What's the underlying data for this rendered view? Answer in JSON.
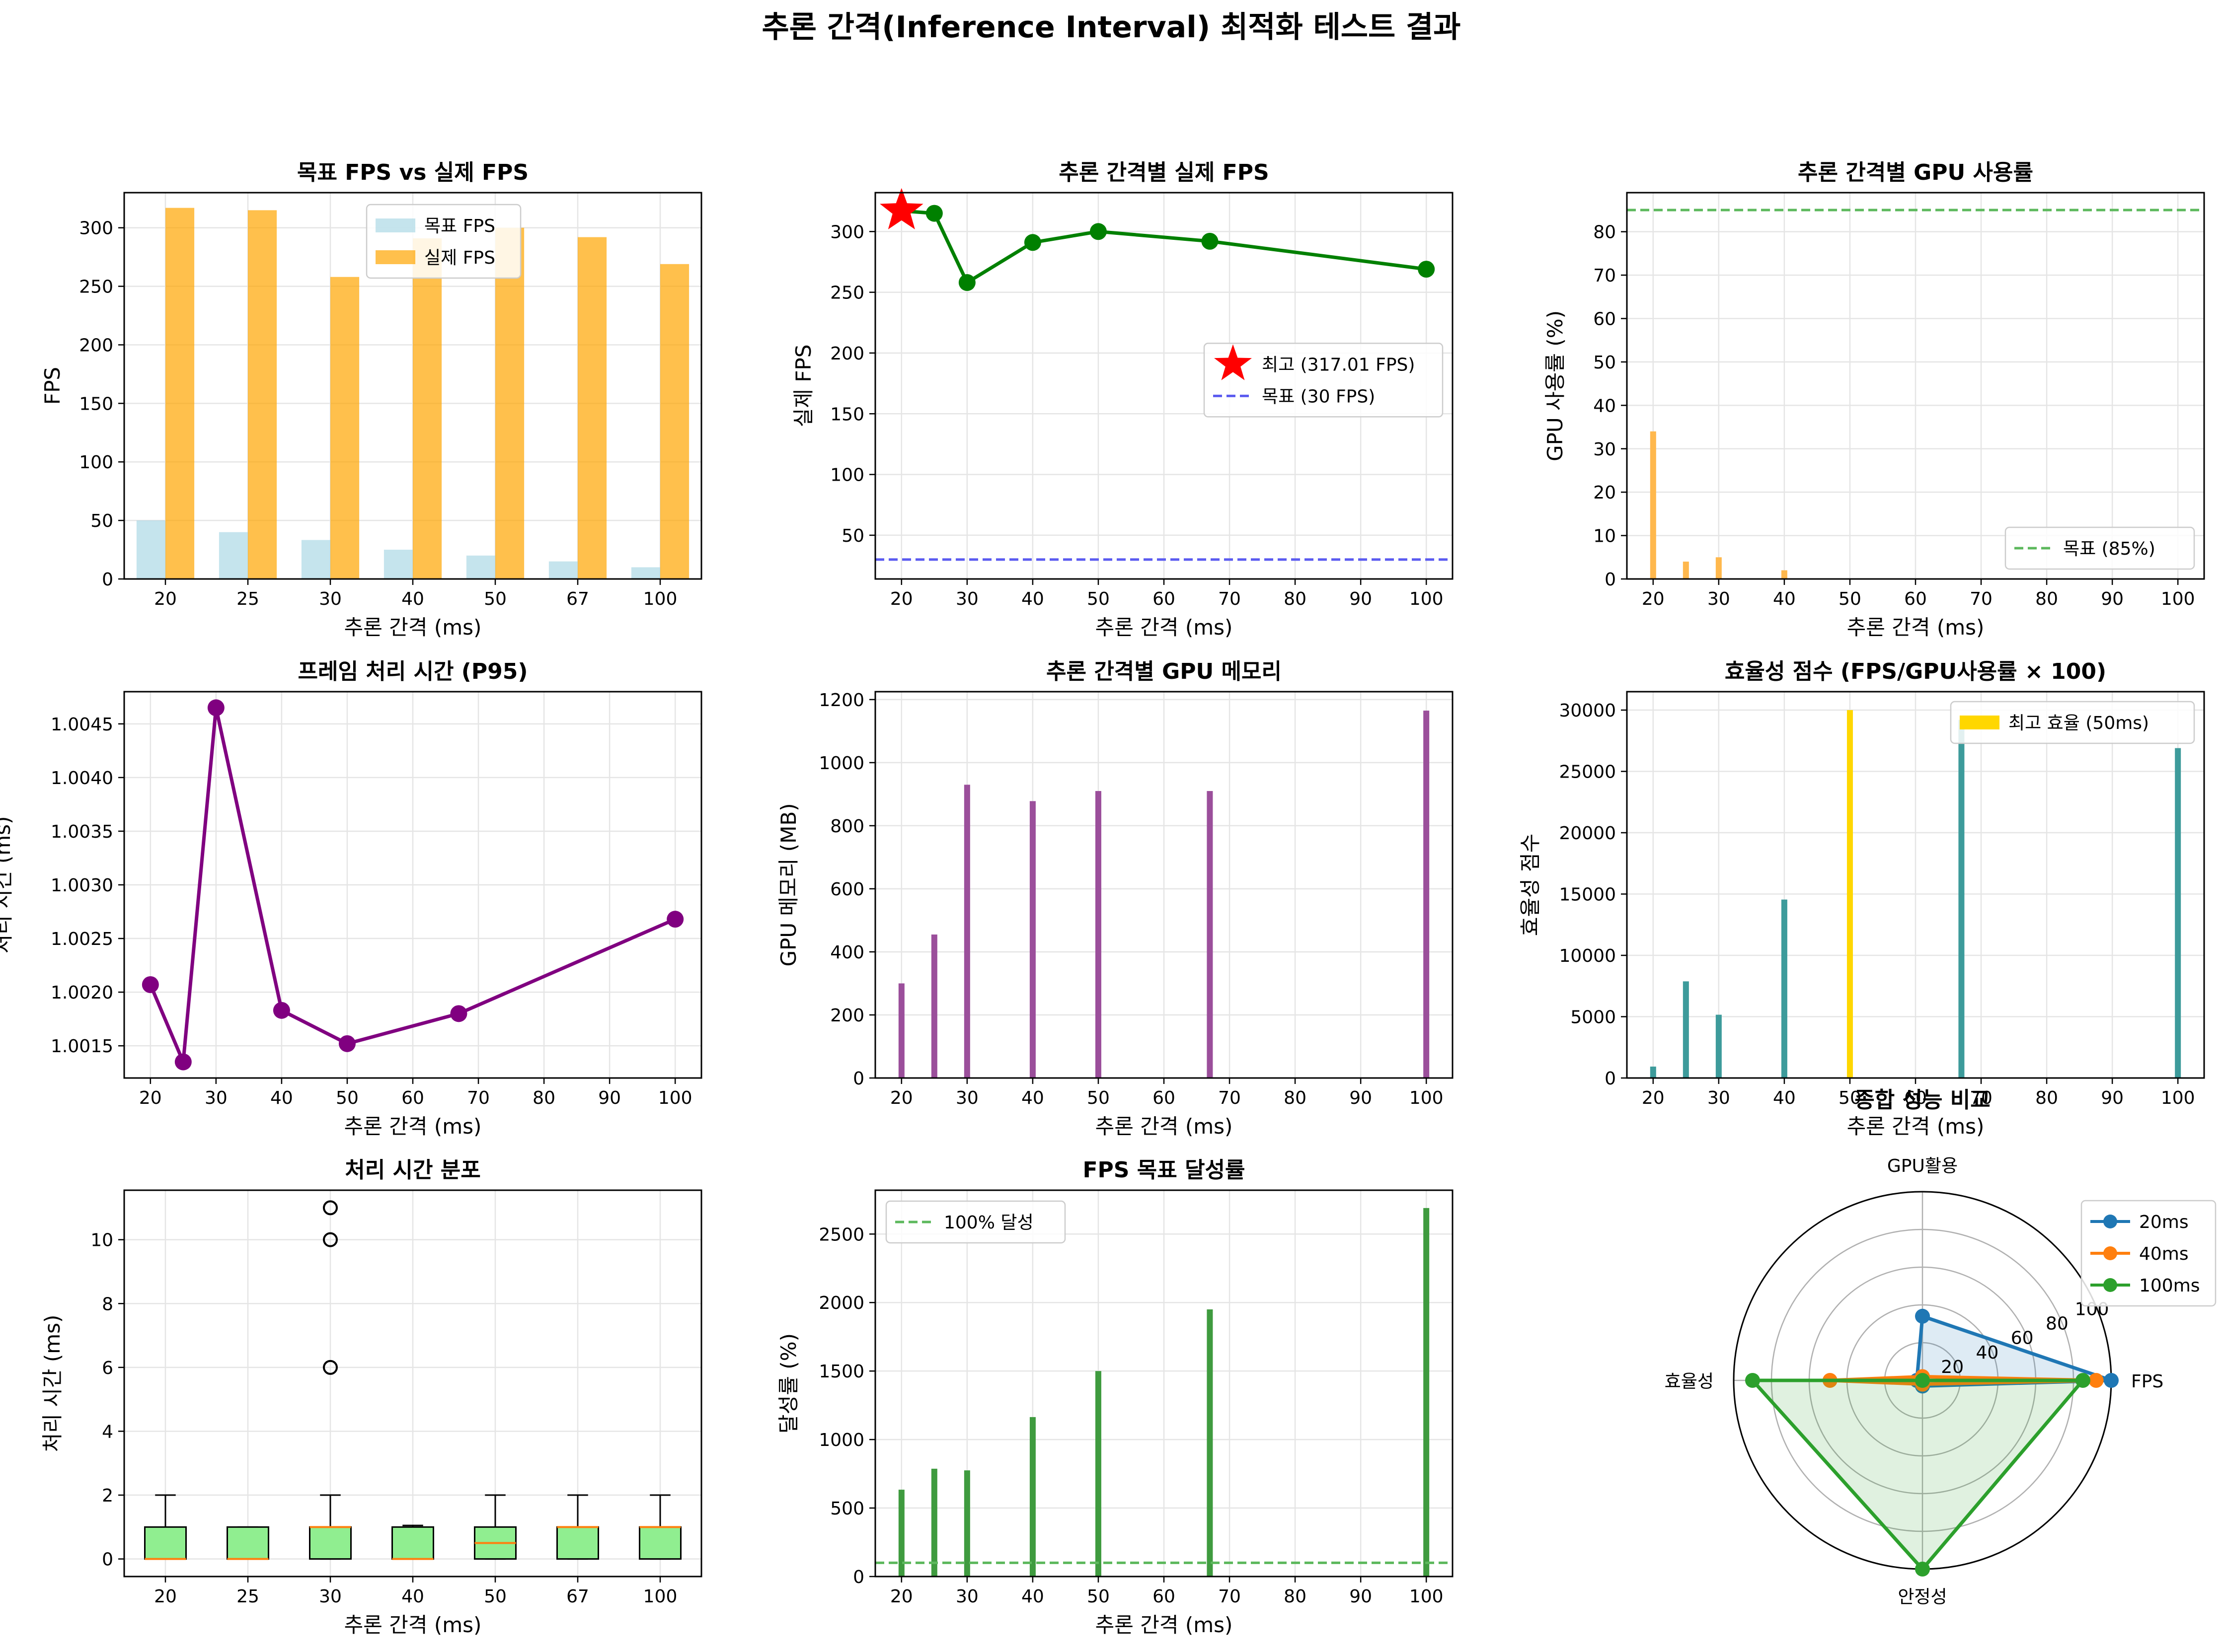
{
  "figure": {
    "title": "추론 간격(Inference Interval) 최적화 테스트 결과"
  },
  "palette": {
    "target_bar": "#add8e6",
    "actual_bar": "#ffa500",
    "green_line": "#008000",
    "star": "#ff0000",
    "blue_dash": "#5b5bf0",
    "orange_bar": "#ffb84d",
    "green_dash": "#5cb85c",
    "purple": "#800080",
    "purple_bar": "#9b4f9b",
    "teal": "#3d9b9b",
    "gold": "#ffd700",
    "box_fill": "#90ee90",
    "median": "#ff7f0e",
    "bar_green": "#3f9b3f",
    "radar_blue": "#1f77b4",
    "radar_orange": "#ff7f0e",
    "radar_green": "#2ca02c",
    "grid": "#e5e5e5"
  },
  "chart_data": [
    {
      "id": "p1",
      "type": "bar",
      "title": "목표 FPS vs 실제 FPS",
      "xlabel": "추론 간격 (ms)",
      "ylabel": "FPS",
      "categories": [
        "20",
        "25",
        "30",
        "40",
        "50",
        "67",
        "100"
      ],
      "series": [
        {
          "name": "목표 FPS",
          "values": [
            50,
            40,
            33.3,
            25,
            20,
            15,
            10
          ]
        },
        {
          "name": "실제 FPS",
          "values": [
            317.01,
            315,
            258,
            291,
            300,
            292,
            269
          ]
        }
      ],
      "ylim": [
        0,
        330
      ],
      "yticks": [
        0,
        50,
        100,
        150,
        200,
        250,
        300
      ],
      "legend": "top-center"
    },
    {
      "id": "p2",
      "type": "line",
      "title": "추론 간격별 실제 FPS",
      "xlabel": "추론 간격 (ms)",
      "ylabel": "실제 FPS",
      "x": [
        20,
        25,
        30,
        40,
        50,
        67,
        100
      ],
      "y": [
        317.01,
        315,
        258,
        291,
        300,
        292,
        269
      ],
      "best": {
        "x": 20,
        "y": 317.01,
        "label": "최고 (317.01 FPS)"
      },
      "target": {
        "y": 30,
        "label": "목표 (30 FPS)"
      },
      "xlim": [
        16,
        104
      ],
      "ylim": [
        14,
        332
      ],
      "xticks": [
        20,
        30,
        40,
        50,
        60,
        70,
        80,
        90,
        100
      ],
      "yticks": [
        50,
        100,
        150,
        200,
        250,
        300
      ],
      "legend": "center-right"
    },
    {
      "id": "p3",
      "type": "bar",
      "title": "추론 간격별 GPU 사용률",
      "xlabel": "추론 간격 (ms)",
      "ylabel": "GPU 사용률 (%)",
      "x": [
        20,
        25,
        30,
        40,
        50,
        67,
        100
      ],
      "values": [
        34,
        4,
        5,
        2,
        0,
        0,
        0
      ],
      "target": {
        "y": 85,
        "label": "목표 (85%)"
      },
      "xlim": [
        16,
        104
      ],
      "ylim": [
        0,
        89
      ],
      "xticks": [
        20,
        30,
        40,
        50,
        60,
        70,
        80,
        90,
        100
      ],
      "yticks": [
        0,
        10,
        20,
        30,
        40,
        50,
        60,
        70,
        80
      ],
      "legend": "bottom-right"
    },
    {
      "id": "p4",
      "type": "line",
      "title": "프레임 처리 시간 (P95)",
      "xlabel": "추론 간격 (ms)",
      "ylabel": "처리 시간 (ms)",
      "x": [
        20,
        25,
        30,
        40,
        50,
        67,
        100
      ],
      "y": [
        1.00207,
        1.00135,
        1.00465,
        1.00183,
        1.00152,
        1.0018,
        1.00268
      ],
      "xlim": [
        16,
        104
      ],
      "ylim": [
        1.0012,
        1.0048
      ],
      "xticks": [
        20,
        30,
        40,
        50,
        60,
        70,
        80,
        90,
        100
      ],
      "yticks": [
        1.0015,
        1.002,
        1.0025,
        1.003,
        1.0035,
        1.004,
        1.0045
      ],
      "ytick_labels": [
        "1.0015",
        "1.0020",
        "1.0025",
        "1.0030",
        "1.0035",
        "1.0040",
        "1.0045"
      ]
    },
    {
      "id": "p5",
      "type": "bar",
      "title": "추론 간격별 GPU 메모리",
      "xlabel": "추론 간격 (ms)",
      "ylabel": "GPU 메모리 (MB)",
      "x": [
        20,
        25,
        30,
        40,
        50,
        67,
        100
      ],
      "values": [
        300,
        455,
        930,
        878,
        910,
        910,
        1165
      ],
      "xlim": [
        16,
        104
      ],
      "ylim": [
        0,
        1225
      ],
      "xticks": [
        20,
        30,
        40,
        50,
        60,
        70,
        80,
        90,
        100
      ],
      "yticks": [
        0,
        200,
        400,
        600,
        800,
        1000,
        1200
      ]
    },
    {
      "id": "p6",
      "type": "bar",
      "title": "효율성 점수 (FPS/GPU사용률 × 100)",
      "xlabel": "추론 간격 (ms)",
      "ylabel": "효율성 점수",
      "x": [
        20,
        25,
        30,
        40,
        50,
        67,
        100
      ],
      "values": [
        930,
        7880,
        5160,
        14550,
        30000,
        29200,
        26900
      ],
      "best_index": 4,
      "best_label": "최고 효율 (50ms)",
      "xlim": [
        16,
        104
      ],
      "ylim": [
        0,
        31500
      ],
      "xticks": [
        20,
        30,
        40,
        50,
        60,
        70,
        80,
        90,
        100
      ],
      "yticks": [
        0,
        5000,
        10000,
        15000,
        20000,
        25000,
        30000
      ],
      "legend": "top-right"
    },
    {
      "id": "p7",
      "type": "box",
      "title": "처리 시간 분포",
      "xlabel": "추론 간격 (ms)",
      "ylabel": "처리 시간 (ms)",
      "categories": [
        "20",
        "25",
        "30",
        "40",
        "50",
        "67",
        "100"
      ],
      "boxes": [
        {
          "q1": 0,
          "median": 0,
          "q3": 1,
          "whislo": 0,
          "whishi": 2,
          "fliers": []
        },
        {
          "q1": 0,
          "median": 0,
          "q3": 1,
          "whislo": 0,
          "whishi": 1,
          "fliers": []
        },
        {
          "q1": 0,
          "median": 1,
          "q3": 1,
          "whislo": 0,
          "whishi": 2,
          "fliers": [
            6,
            10,
            11
          ]
        },
        {
          "q1": 0,
          "median": 0,
          "q3": 1,
          "whislo": 0,
          "whishi": 1.05,
          "fliers": []
        },
        {
          "q1": 0,
          "median": 0.5,
          "q3": 1,
          "whislo": 0,
          "whishi": 2,
          "fliers": []
        },
        {
          "q1": 0,
          "median": 1,
          "q3": 1,
          "whislo": 0,
          "whishi": 2,
          "fliers": []
        },
        {
          "q1": 0,
          "median": 1,
          "q3": 1,
          "whislo": 0,
          "whishi": 2,
          "fliers": []
        }
      ],
      "ylim": [
        -0.55,
        11.55
      ],
      "yticks": [
        0,
        2,
        4,
        6,
        8,
        10
      ]
    },
    {
      "id": "p8",
      "type": "bar",
      "title": "FPS 목표 달성률",
      "xlabel": "추론 간격 (ms)",
      "ylabel": "달성률 (%)",
      "x": [
        20,
        25,
        30,
        40,
        50,
        67,
        100
      ],
      "values": [
        634,
        787,
        775,
        1164,
        1500,
        1950,
        2690
      ],
      "target": {
        "y": 100,
        "label": "100% 달성"
      },
      "xlim": [
        16,
        104
      ],
      "ylim": [
        0,
        2820
      ],
      "xticks": [
        20,
        30,
        40,
        50,
        60,
        70,
        80,
        90,
        100
      ],
      "yticks": [
        0,
        500,
        1000,
        1500,
        2000,
        2500
      ],
      "legend": "top-left"
    },
    {
      "id": "p9",
      "type": "radar",
      "title": "종합 성능 비교",
      "axes": [
        "FPS",
        "GPU활용",
        "효율성",
        "안정성"
      ],
      "rmax": 100,
      "rticks": [
        20,
        40,
        60,
        80,
        100
      ],
      "series": [
        {
          "name": "20ms",
          "values": [
            100,
            34,
            3,
            3
          ]
        },
        {
          "name": "40ms",
          "values": [
            92,
            2,
            49,
            2
          ]
        },
        {
          "name": "100ms",
          "values": [
            85,
            0,
            90,
            100
          ]
        }
      ],
      "legend": "top-right"
    }
  ]
}
